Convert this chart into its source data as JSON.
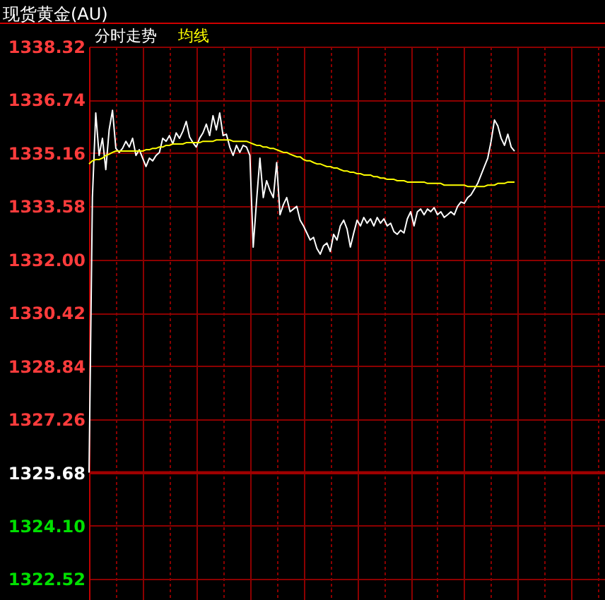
{
  "chart_data": {
    "type": "line",
    "title": "现货黄金(AU)",
    "categories": [
      null,
      null,
      null,
      null,
      null,
      null,
      null,
      null,
      null,
      null,
      null,
      null,
      null,
      null,
      null,
      null,
      null,
      null,
      null,
      null,
      null,
      null,
      null,
      null,
      null,
      null,
      null,
      null,
      null,
      null,
      null,
      null,
      null,
      null,
      null,
      null,
      null,
      null,
      null,
      null,
      null,
      null,
      null,
      null,
      null,
      null,
      null,
      null,
      null,
      null,
      null,
      null,
      null,
      null,
      null,
      null,
      null,
      null,
      null,
      null,
      null,
      null,
      null,
      null,
      null,
      null,
      null,
      null,
      null,
      null,
      null,
      null,
      null,
      null,
      null,
      null,
      null,
      null,
      null,
      null,
      null,
      null,
      null,
      null,
      null,
      null,
      null,
      null,
      null,
      null,
      null,
      null,
      null,
      null,
      null,
      null,
      null,
      null,
      null,
      null,
      null,
      null,
      null,
      null,
      null,
      null,
      null,
      null,
      null,
      null,
      null,
      null,
      null,
      null,
      null,
      null,
      null,
      null,
      null,
      null,
      null,
      null,
      null,
      null,
      null,
      null,
      null,
      null,
      null,
      null,
      null,
      null,
      null,
      null,
      null,
      null,
      null,
      null,
      null,
      null,
      null,
      null,
      null,
      null,
      null,
      null,
      null,
      null,
      null,
      null,
      null,
      null,
      null,
      null,
      null
    ],
    "series": [
      {
        "name": "分时走势",
        "color": "#ffffff",
        "values": [
          1325.68,
          1333.84,
          1336.35,
          1335.09,
          1335.6,
          1334.67,
          1335.85,
          1336.43,
          1335.3,
          1335.18,
          1335.3,
          1335.51,
          1335.34,
          1335.6,
          1335.09,
          1335.26,
          1335.01,
          1334.76,
          1335.01,
          1334.93,
          1335.09,
          1335.18,
          1335.6,
          1335.51,
          1335.68,
          1335.43,
          1335.76,
          1335.6,
          1335.81,
          1336.1,
          1335.64,
          1335.47,
          1335.34,
          1335.6,
          1335.76,
          1336.02,
          1335.68,
          1336.27,
          1335.85,
          1336.35,
          1335.68,
          1335.72,
          1335.34,
          1335.09,
          1335.39,
          1335.18,
          1335.39,
          1335.34,
          1335.09,
          1332.37,
          1333.75,
          1335.01,
          1333.84,
          1334.34,
          1334.05,
          1333.84,
          1334.88,
          1333.33,
          1333.63,
          1333.84,
          1333.42,
          1333.5,
          1333.58,
          1333.17,
          1333.0,
          1332.79,
          1332.58,
          1332.66,
          1332.33,
          1332.16,
          1332.41,
          1332.49,
          1332.24,
          1332.75,
          1332.58,
          1333.0,
          1333.17,
          1332.91,
          1332.37,
          1332.79,
          1333.17,
          1333.0,
          1333.25,
          1333.08,
          1333.21,
          1333.0,
          1333.25,
          1333.08,
          1333.21,
          1333.0,
          1333.08,
          1332.83,
          1332.75,
          1332.87,
          1332.79,
          1333.21,
          1333.42,
          1333.0,
          1333.42,
          1333.5,
          1333.33,
          1333.5,
          1333.42,
          1333.54,
          1333.33,
          1333.42,
          1333.25,
          1333.33,
          1333.42,
          1333.33,
          1333.58,
          1333.71,
          1333.67,
          1333.84,
          1333.92,
          1334.09,
          1334.26,
          1334.51,
          1334.76,
          1335.01,
          1335.51,
          1336.14,
          1335.97,
          1335.6,
          1335.39,
          1335.72,
          1335.34,
          1335.22,
          null,
          null,
          null,
          null,
          null,
          null,
          null,
          null,
          null,
          null,
          null,
          null,
          null,
          null,
          null,
          null,
          null,
          null,
          null,
          null,
          null,
          null,
          null,
          null,
          null,
          null,
          null
        ]
      },
      {
        "name": "均线",
        "color": "#ffff00",
        "values": [
          1334.84,
          1334.93,
          1334.97,
          1334.97,
          1335.01,
          1335.09,
          1335.13,
          1335.18,
          1335.22,
          1335.22,
          1335.22,
          1335.22,
          1335.22,
          1335.22,
          1335.22,
          1335.22,
          1335.22,
          1335.26,
          1335.26,
          1335.3,
          1335.3,
          1335.34,
          1335.34,
          1335.39,
          1335.39,
          1335.43,
          1335.43,
          1335.43,
          1335.43,
          1335.47,
          1335.47,
          1335.47,
          1335.47,
          1335.47,
          1335.51,
          1335.51,
          1335.51,
          1335.51,
          1335.55,
          1335.55,
          1335.55,
          1335.55,
          1335.55,
          1335.51,
          1335.51,
          1335.51,
          1335.51,
          1335.51,
          1335.47,
          1335.43,
          1335.39,
          1335.39,
          1335.34,
          1335.34,
          1335.3,
          1335.3,
          1335.26,
          1335.22,
          1335.18,
          1335.18,
          1335.13,
          1335.09,
          1335.05,
          1335.05,
          1334.97,
          1334.93,
          1334.93,
          1334.88,
          1334.84,
          1334.84,
          1334.8,
          1334.76,
          1334.76,
          1334.72,
          1334.72,
          1334.67,
          1334.63,
          1334.63,
          1334.59,
          1334.59,
          1334.55,
          1334.55,
          1334.51,
          1334.51,
          1334.51,
          1334.46,
          1334.46,
          1334.42,
          1334.42,
          1334.38,
          1334.38,
          1334.38,
          1334.34,
          1334.34,
          1334.34,
          1334.3,
          1334.3,
          1334.3,
          1334.3,
          1334.3,
          1334.3,
          1334.26,
          1334.26,
          1334.26,
          1334.26,
          1334.26,
          1334.21,
          1334.21,
          1334.21,
          1334.21,
          1334.21,
          1334.21,
          1334.21,
          1334.17,
          1334.17,
          1334.17,
          1334.17,
          1334.17,
          1334.17,
          1334.21,
          1334.21,
          1334.21,
          1334.26,
          1334.26,
          1334.26,
          1334.3,
          1334.3,
          1334.3,
          null,
          null,
          null,
          null,
          null,
          null,
          null,
          null,
          null,
          null,
          null,
          null,
          null,
          null,
          null,
          null,
          null,
          null,
          null,
          null,
          null,
          null,
          null,
          null,
          null,
          null,
          null
        ]
      }
    ],
    "ylim": [
      1321.9,
      1338.32
    ],
    "yticks": [
      1322.52,
      {
        "value": 1324.1,
        "label": "1324.10"
      },
      1325.68,
      1327.26,
      1328.84,
      1330.42,
      {
        "value": 1332,
        "label": "1332.00"
      },
      1333.58,
      1335.16,
      1336.74,
      1338.32
    ],
    "tick_labels": "y",
    "grid": true,
    "legend": "top left",
    "ref_lines": [
      {
        "axis": "y",
        "value": 1325.68,
        "color": "#a00000"
      }
    ]
  }
}
